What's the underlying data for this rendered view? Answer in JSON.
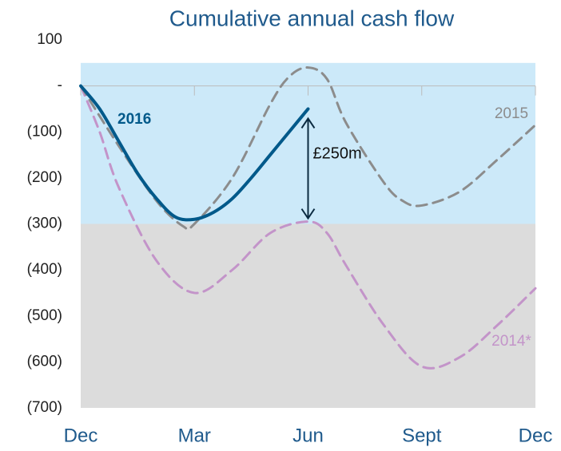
{
  "chart_data": {
    "type": "line",
    "title": "Cumulative annual cash flow",
    "xlim": [
      0,
      12
    ],
    "xticks": [
      {
        "value": 0,
        "label": "Dec"
      },
      {
        "value": 3,
        "label": "Mar"
      },
      {
        "value": 6,
        "label": "Jun"
      },
      {
        "value": 9,
        "label": "Sept"
      },
      {
        "value": 12,
        "label": "Dec"
      }
    ],
    "ylim": [
      -700,
      100
    ],
    "yticks": [
      100,
      {
        "value": 0,
        "label": "-"
      },
      {
        "value": -100,
        "label": "(100)"
      },
      {
        "value": -200,
        "label": "(200)"
      },
      {
        "value": -300,
        "label": "(300)"
      },
      {
        "value": -400,
        "label": "(400)"
      },
      {
        "value": -500,
        "label": "(500)"
      },
      {
        "value": -600,
        "label": "(600)"
      },
      {
        "value": -700,
        "label": "(700)"
      }
    ],
    "bands": [
      {
        "from": 50,
        "to": -300,
        "color": "#cce9f9"
      },
      {
        "from": -300,
        "to": -700,
        "color": "#dcdcdc"
      }
    ],
    "series": [
      {
        "name": "2014*",
        "color": "#c394c9",
        "dashed": true,
        "x": [
          0,
          0.5,
          1,
          2,
          3,
          4,
          5,
          6,
          6.5,
          7,
          8,
          9,
          10,
          11,
          12
        ],
        "values": [
          0,
          -100,
          -220,
          -380,
          -450,
          -400,
          -320,
          -295,
          -320,
          -390,
          -520,
          -610,
          -590,
          -520,
          -440
        ]
      },
      {
        "name": "2015",
        "color": "#8c8c8c",
        "dashed": true,
        "x": [
          0,
          1,
          2,
          2.7,
          3,
          4,
          5,
          5.5,
          6,
          6.5,
          7,
          8,
          8.5,
          9,
          10,
          11,
          12
        ],
        "values": [
          0,
          -130,
          -250,
          -305,
          -300,
          -200,
          -40,
          20,
          40,
          15,
          -80,
          -210,
          -250,
          -260,
          -230,
          -160,
          -85
        ]
      },
      {
        "name": "2016",
        "color": "#00598a",
        "dashed": false,
        "x": [
          0,
          0.5,
          1,
          1.5,
          2,
          2.5,
          3,
          3.5,
          4,
          4.5,
          5,
          5.5,
          6
        ],
        "values": [
          0,
          -50,
          -120,
          -190,
          -245,
          -285,
          -290,
          -275,
          -245,
          -200,
          -150,
          -100,
          -50
        ]
      }
    ],
    "annotation": {
      "text": "£250m",
      "x": 6,
      "from": -50,
      "to": -295
    }
  }
}
